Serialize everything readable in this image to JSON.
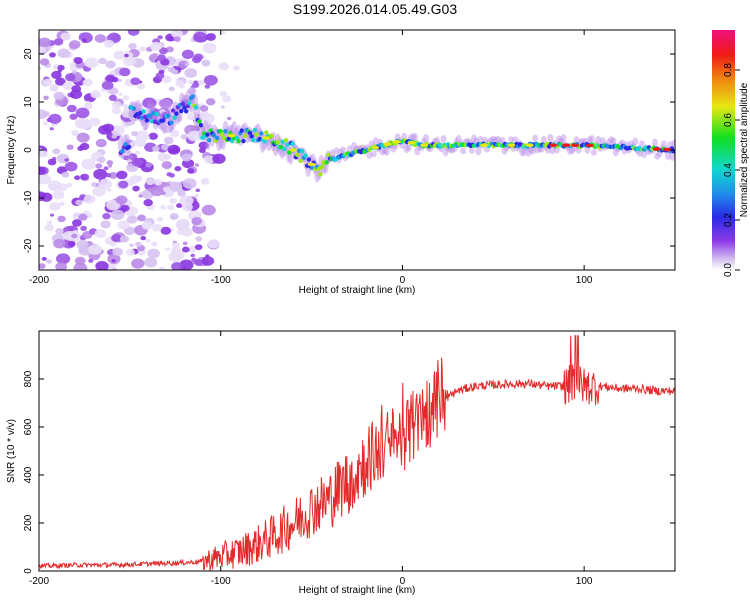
{
  "figure_title": "S199.2026.014.05.49.G03",
  "chart_data": [
    {
      "type": "heatmap",
      "xlabel": "Height of straight line (km)",
      "ylabel": "Frequency (Hz)",
      "xlim": [
        -200,
        150
      ],
      "ylim": [
        -25,
        25
      ],
      "xticks": [
        -200,
        -100,
        0,
        100
      ],
      "yticks": [
        -20,
        -10,
        0,
        10,
        20
      ],
      "colorbar": {
        "label": "Normalized spectral amplitude",
        "range": [
          0,
          0.96
        ],
        "ticks": [
          0.0,
          0.2,
          0.4,
          0.6,
          0.8
        ]
      },
      "ridge": {
        "x": [
          -150,
          -140,
          -130,
          -120,
          -115,
          -110,
          -100,
          -90,
          -80,
          -70,
          -60,
          -50,
          -45,
          -40,
          -30,
          -20,
          -10,
          0,
          10,
          20,
          50,
          100,
          150
        ],
        "y": [
          8,
          7,
          6,
          9,
          10,
          3,
          3,
          3,
          3,
          2,
          0,
          -3,
          -4,
          -2,
          -1,
          0,
          1,
          2,
          1,
          1,
          1,
          1,
          0
        ]
      }
    },
    {
      "type": "line",
      "xlabel": "Height of straight line (km)",
      "ylabel": "SNR (10 * v/v)",
      "xlim": [
        -200,
        150
      ],
      "ylim": [
        0,
        1000
      ],
      "xticks": [
        -200,
        -100,
        0,
        100
      ],
      "yticks": [
        0,
        200,
        400,
        600,
        800
      ],
      "color": "#e32a2a",
      "series": [
        {
          "name": "SNR",
          "x": [
            -200,
            -180,
            -160,
            -140,
            -120,
            -110,
            -100,
            -90,
            -80,
            -70,
            -60,
            -50,
            -40,
            -30,
            -20,
            -10,
            0,
            10,
            20,
            30,
            40,
            50,
            60,
            70,
            80,
            90,
            95,
            100,
            110,
            120,
            130,
            140,
            150
          ],
          "y": [
            20,
            25,
            25,
            30,
            35,
            40,
            60,
            80,
            110,
            150,
            200,
            260,
            300,
            380,
            460,
            520,
            560,
            620,
            700,
            750,
            770,
            775,
            780,
            780,
            770,
            770,
            790,
            770,
            770,
            760,
            760,
            750,
            750
          ]
        }
      ]
    }
  ]
}
